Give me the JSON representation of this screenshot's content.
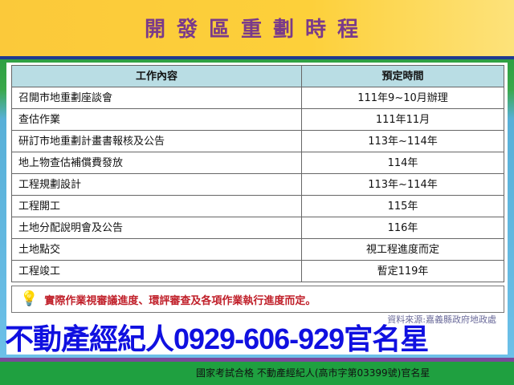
{
  "title": "開發區重劃時程",
  "table": {
    "headers": [
      "工作內容",
      "預定時間"
    ],
    "rows": [
      {
        "task": "召開市地重劃座談會",
        "time": "111年9~10月辦理"
      },
      {
        "task": "查估作業",
        "time": "111年11月"
      },
      {
        "task": "研訂市地重劃計畫書報核及公告",
        "time": "113年~114年"
      },
      {
        "task": "地上物查估補償費發放",
        "time": "114年"
      },
      {
        "task": "工程規劃設計",
        "time": "113年~114年"
      },
      {
        "task": "工程開工",
        "time": "115年"
      },
      {
        "task": "土地分配說明會及公告",
        "time": "116年"
      },
      {
        "task": "土地點交",
        "time": "視工程進度而定"
      },
      {
        "task": "工程竣工",
        "time": "暫定119年"
      }
    ]
  },
  "note": {
    "icon": "lightbulb-icon",
    "text": "實際作業視審議進度、環評審查及各項作業執行進度而定。"
  },
  "source": "資料來源:嘉義縣政府地政處",
  "footer": "國家考試合格 不動產經紀人(高市字第03399號)官名星",
  "watermark": "不動產經紀人0929-606-929官名星",
  "colors": {
    "title": "#7a3a8a",
    "header_bg": "#b9dde4",
    "note": "#c0202a",
    "watermark": "#1010e0"
  }
}
